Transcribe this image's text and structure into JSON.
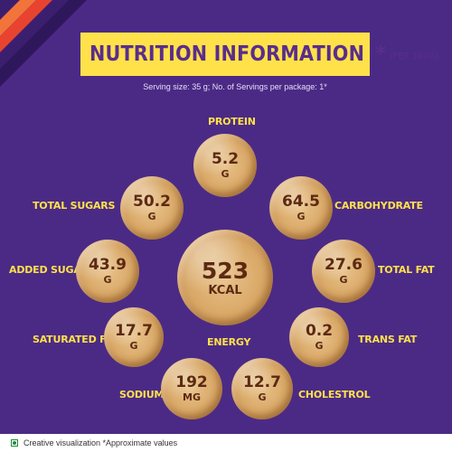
{
  "title": {
    "main": "NUTRITION INFORMATION",
    "star": "*",
    "per": "(PER 100G)"
  },
  "serving": "Serving size: 35 g; No. of Servings per package: 1*",
  "nutrients": {
    "protein": {
      "label": "PROTEIN",
      "value": "5.2",
      "unit": "G"
    },
    "total_sugars": {
      "label": "TOTAL SUGARS",
      "value": "50.2",
      "unit": "G"
    },
    "carbohydrate": {
      "label": "CARBOHYDRATE",
      "value": "64.5",
      "unit": "G"
    },
    "added_sugars": {
      "label": "ADDED SUGARS",
      "value": "43.9",
      "unit": "G"
    },
    "energy": {
      "label": "ENERGY",
      "value": "523",
      "unit": "KCAL"
    },
    "total_fat": {
      "label": "TOTAL FAT",
      "value": "27.6",
      "unit": "G"
    },
    "saturated_fat": {
      "label": "SATURATED FAT",
      "value": "17.7",
      "unit": "G"
    },
    "trans_fat": {
      "label": "TRANS FAT",
      "value": "0.2",
      "unit": "G"
    },
    "sodium": {
      "label": "SODIUM",
      "value": "192",
      "unit": "MG"
    },
    "cholestrol": {
      "label": "CHOLESTROL",
      "value": "12.7",
      "unit": "G"
    }
  },
  "footer": {
    "text": "Creative visualization *Approximate values",
    "veg_icon": "veg-mark-icon"
  },
  "colors": {
    "background": "#4b2a86",
    "accent_yellow": "#ffe14a",
    "stripe_orange": "#f2743a",
    "stripe_red": "#e8432e",
    "stripe_purple_dark": "#3b1f6e"
  }
}
